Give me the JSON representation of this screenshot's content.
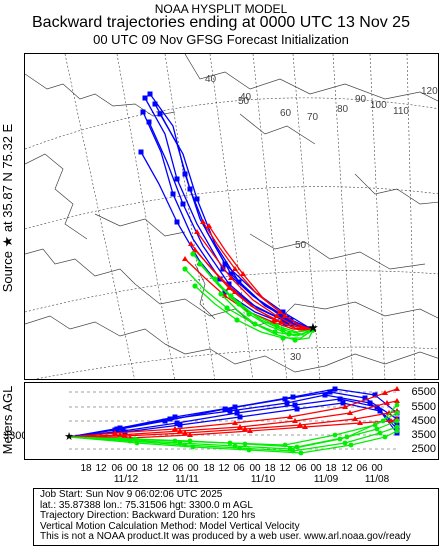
{
  "header": {
    "model": "NOAA HYSPLIT MODEL",
    "title": "Backward trajectories ending at 0000 UTC 13 Nov 25",
    "subtitle": "00 UTC 09 Nov     GFSG  Forecast Initialization"
  },
  "map": {
    "side_label": "Source ★ at    35.87 N    75.32 E",
    "lat_labels": [
      "30",
      "40",
      "50"
    ],
    "lon_labels": [
      "40",
      "50",
      "60",
      "70",
      "80",
      "90",
      "100",
      "110",
      "120"
    ],
    "colors": {
      "red": "#ff0000",
      "blue": "#0000ff",
      "green": "#00ee00",
      "grid": "#333333"
    }
  },
  "profile": {
    "axis_title": "Meters AGL",
    "start_height": "3300",
    "height_labels": [
      "6500",
      "5500",
      "4500",
      "3500",
      "2500"
    ],
    "time_ticks": [
      "18",
      "12",
      "06",
      "00",
      "18",
      "12",
      "06",
      "00",
      "18",
      "12",
      "06",
      "00",
      "18",
      "12",
      "06",
      "00",
      "18",
      "12",
      "06",
      "00"
    ],
    "date_labels": [
      "11/12",
      "11/11",
      "11/10",
      "11/09",
      "11/08"
    ]
  },
  "footer": {
    "job_start": "Job Start: Sun Nov  9 06:02:06 UTC 2025",
    "location": "lat.: 35.87388    lon.: 75.31506     hgt: 3300.0 m AGL",
    "direction": "Trajectory Direction: Backward        Duration: 120 hrs",
    "vertical": "Vertical Motion Calculation Method: Model Vertical Velocity",
    "disclaimer": "This is not a NOAA product.It was produced by a web user. www.arl.noaa.gov/ready"
  }
}
